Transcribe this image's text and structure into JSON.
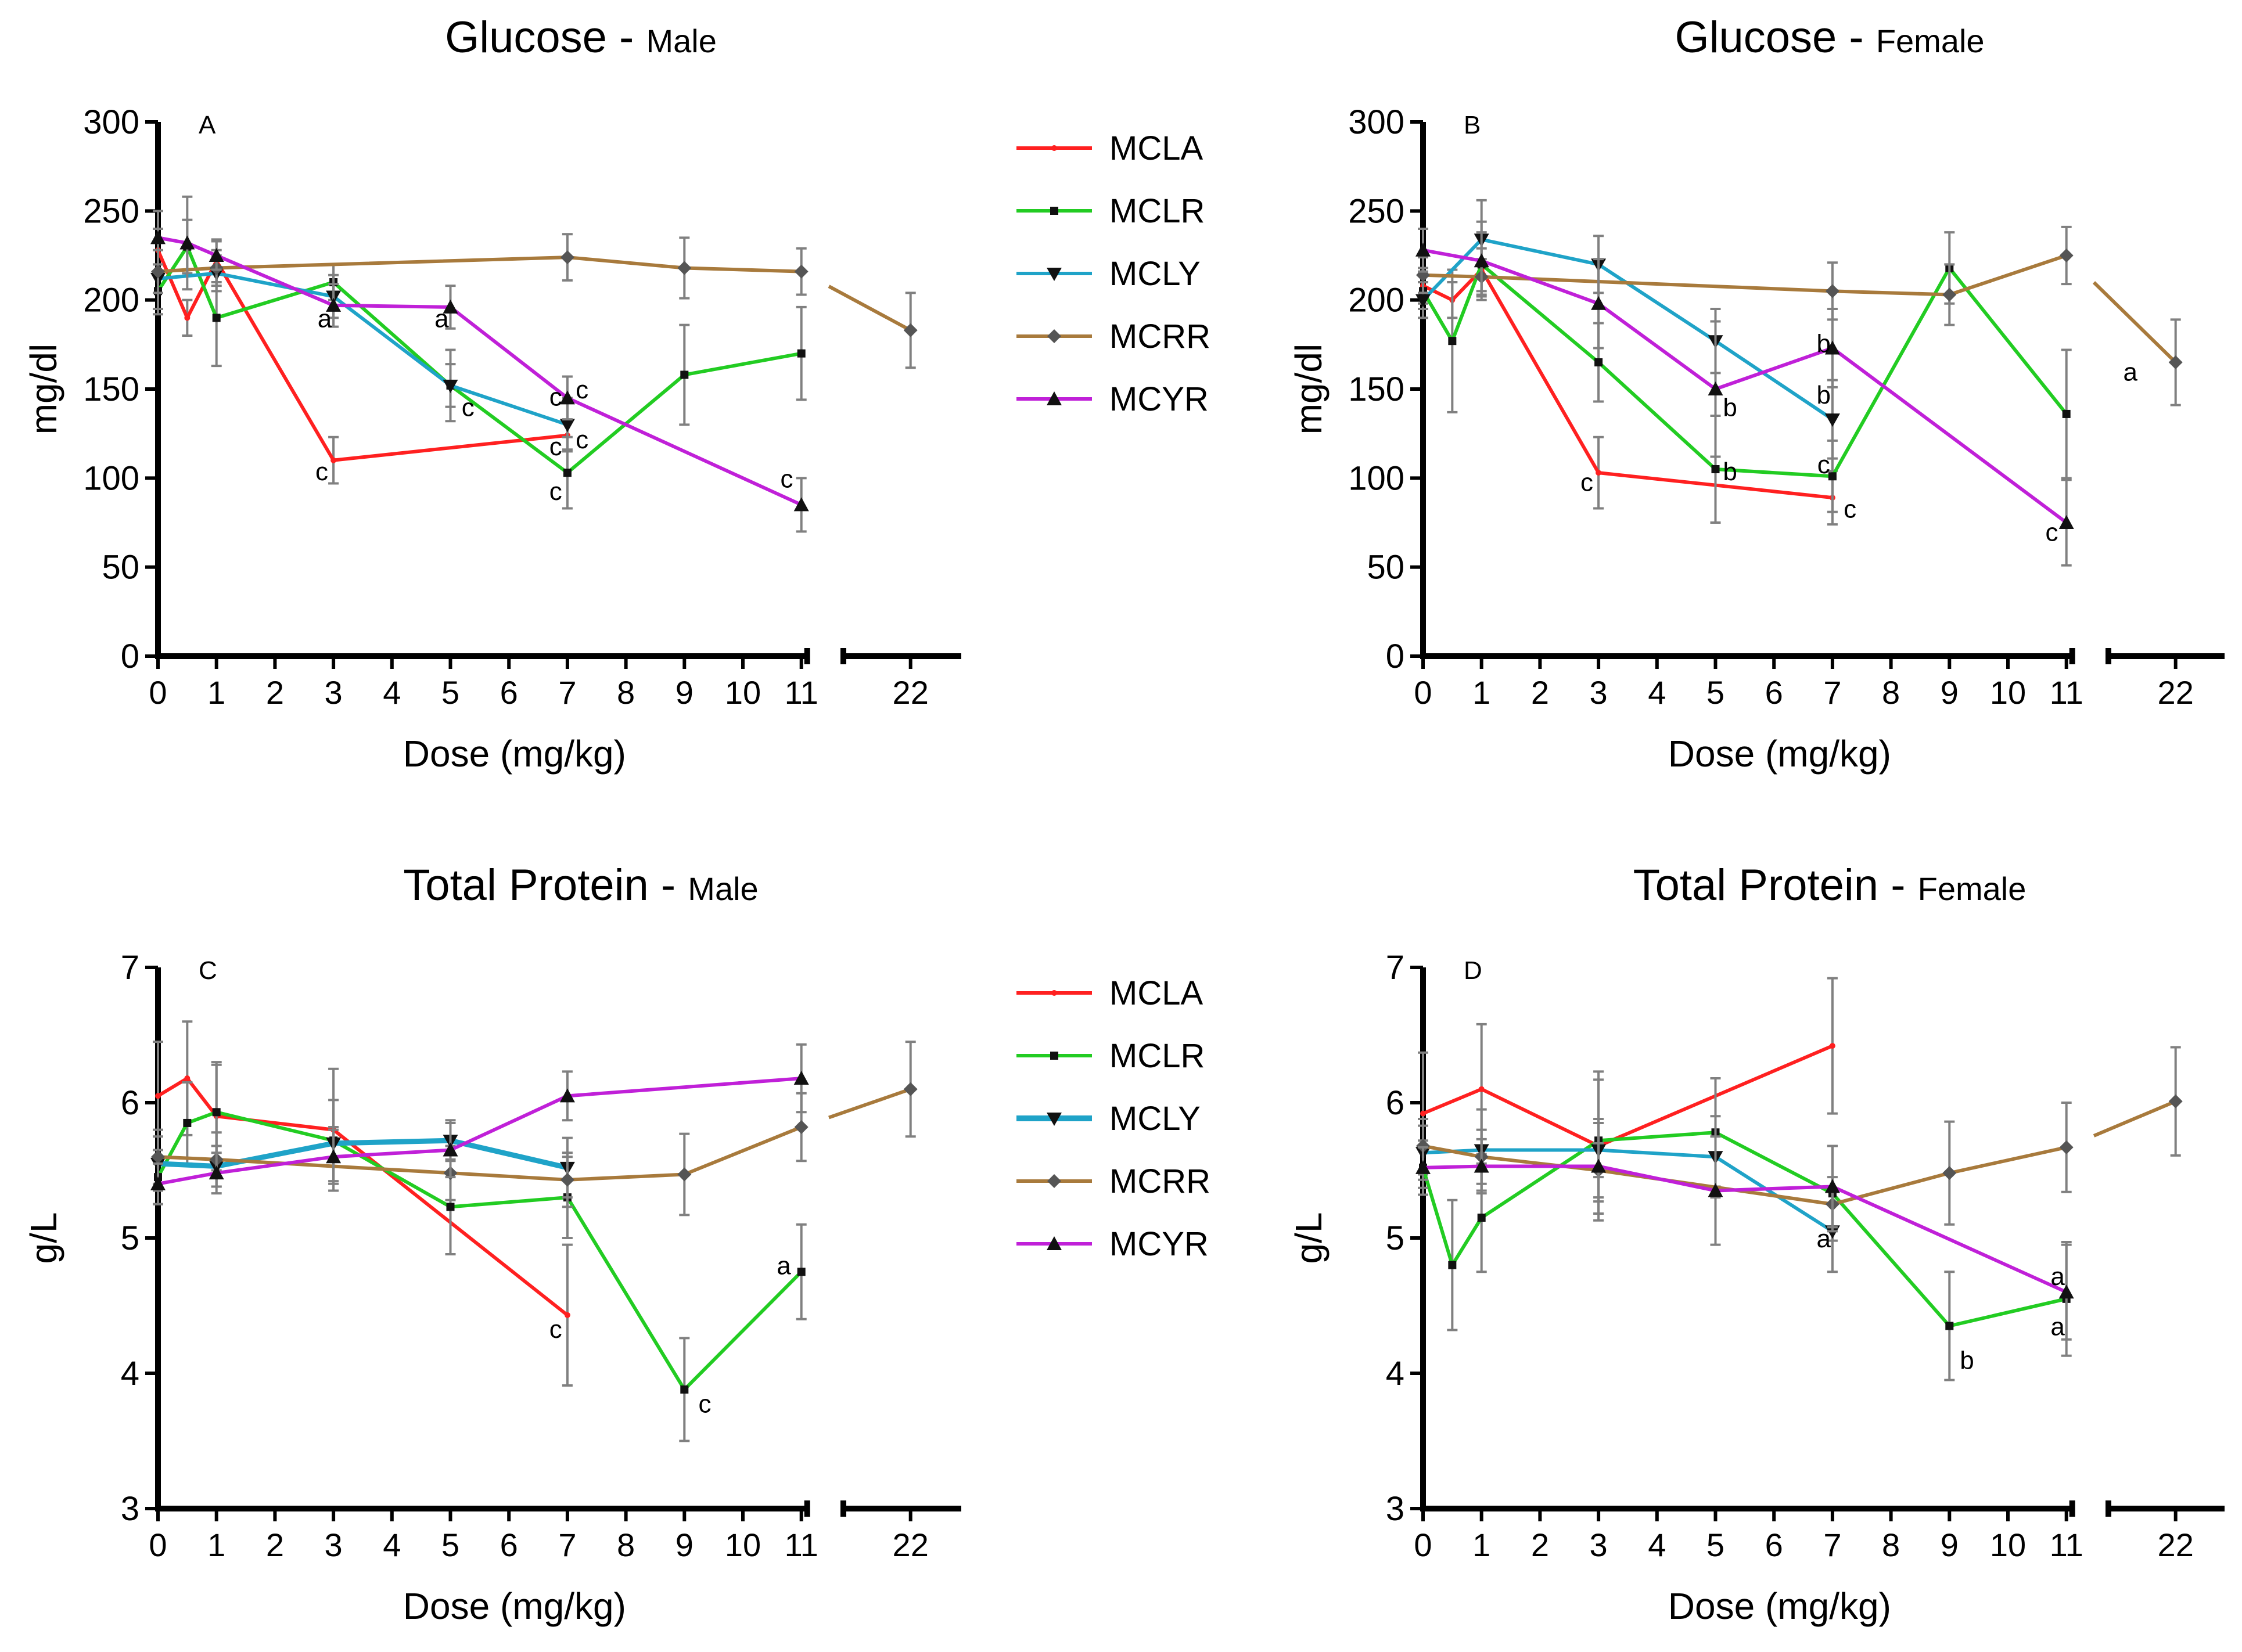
{
  "colors": {
    "MCLA": "#ff2020",
    "MCLR": "#22cc22",
    "MCLY": "#1fa3c8",
    "MCRR": "#a87a3c",
    "MCYR": "#c020d8",
    "axis": "#000000",
    "error_bar": "#808080"
  },
  "legend_series": [
    "MCLA",
    "MCLR",
    "MCLY",
    "MCRR",
    "MCYR"
  ],
  "chart_data": [
    {
      "id": "A",
      "type": "line",
      "title_main": "Glucose",
      "title_sep": "-",
      "title_sub": "Male",
      "panel_label": "A",
      "xlabel": "Dose (mg/kg)",
      "ylabel": "mg/dl",
      "ylim": [
        0,
        300
      ],
      "yticks": [
        0,
        50,
        100,
        150,
        200,
        250,
        300
      ],
      "xticks_main": [
        0,
        1,
        2,
        3,
        4,
        5,
        6,
        7,
        8,
        9,
        10,
        11
      ],
      "xticks_break": [
        22
      ],
      "series": [
        {
          "name": "MCLA",
          "points": [
            [
              0,
              228,
              12
            ],
            [
              0.5,
              190,
              10
            ],
            [
              1,
              222,
              12
            ],
            [
              3,
              110,
              13
            ],
            [
              7,
              124,
              8
            ]
          ]
        },
        {
          "name": "MCLR",
          "points": [
            [
              0,
              205,
              10
            ],
            [
              0.5,
              230,
              15
            ],
            [
              1,
              190,
              27
            ],
            [
              3,
              210,
              10
            ],
            [
              5,
              152,
              20
            ],
            [
              7,
              103,
              20
            ],
            [
              9,
              158,
              28
            ],
            [
              11,
              170,
              26
            ]
          ]
        },
        {
          "name": "MCLY",
          "points": [
            [
              0,
              212,
              20
            ],
            [
              1,
              215,
              10
            ],
            [
              3,
              202,
              12
            ],
            [
              5,
              152,
              12
            ],
            [
              7,
              130,
              15
            ]
          ]
        },
        {
          "name": "MCRR",
          "points": [
            [
              0,
              216,
              12
            ],
            [
              1,
              218,
              10
            ],
            [
              7,
              224,
              13
            ],
            [
              9,
              218,
              17
            ],
            [
              11,
              216,
              13
            ]
          ],
          "break_points": [
            [
              22,
              183,
              21
            ]
          ]
        },
        {
          "name": "MCYR",
          "points": [
            [
              0,
              235,
              15
            ],
            [
              0.5,
              232,
              26
            ],
            [
              1,
              225,
              8
            ],
            [
              3,
              197,
              12
            ],
            [
              5,
              196,
              12
            ],
            [
              7,
              145,
              12
            ],
            [
              11,
              85,
              15
            ]
          ]
        }
      ],
      "annotations": [
        {
          "text": "a",
          "x": 2.85,
          "y": 190
        },
        {
          "text": "a",
          "x": 4.85,
          "y": 190
        },
        {
          "text": "c",
          "x": 5.3,
          "y": 140
        },
        {
          "text": "c",
          "x": 2.8,
          "y": 104
        },
        {
          "text": "c",
          "x": 6.8,
          "y": 118
        },
        {
          "text": "c",
          "x": 6.8,
          "y": 93
        },
        {
          "text": "c",
          "x": 6.8,
          "y": 146
        },
        {
          "text": "c",
          "x": 7.25,
          "y": 150
        },
        {
          "text": "c",
          "x": 7.25,
          "y": 122
        },
        {
          "text": "c",
          "x": 10.75,
          "y": 100
        }
      ]
    },
    {
      "id": "B",
      "type": "line",
      "title_main": "Glucose",
      "title_sep": "-",
      "title_sub": "Female",
      "panel_label": "B",
      "xlabel": "Dose (mg/kg)",
      "ylabel": "mg/dl",
      "ylim": [
        0,
        300
      ],
      "yticks": [
        0,
        50,
        100,
        150,
        200,
        250,
        300
      ],
      "xticks_main": [
        0,
        1,
        2,
        3,
        4,
        5,
        6,
        7,
        8,
        9,
        10,
        11
      ],
      "xticks_break": [
        22
      ],
      "series": [
        {
          "name": "MCLA",
          "points": [
            [
              0,
              208,
              10
            ],
            [
              0.5,
              200,
              10
            ],
            [
              1,
              217,
              12
            ],
            [
              3,
              103,
              20
            ],
            [
              7,
              89,
              15
            ]
          ]
        },
        {
          "name": "MCLR",
          "points": [
            [
              0,
              205,
              10
            ],
            [
              0.5,
              177,
              40
            ],
            [
              1,
              220,
              18
            ],
            [
              3,
              165,
              22
            ],
            [
              5,
              105,
              30
            ],
            [
              7,
              101,
              20
            ],
            [
              9,
              218,
              20
            ],
            [
              11,
              136,
              36
            ]
          ]
        },
        {
          "name": "MCLY",
          "points": [
            [
              0,
              200,
              10
            ],
            [
              1,
              234,
              22
            ],
            [
              3,
              220,
              16
            ],
            [
              5,
              177,
              18
            ],
            [
              7,
              133,
              22
            ]
          ]
        },
        {
          "name": "MCRR",
          "points": [
            [
              0,
              214,
              10
            ],
            [
              1,
              213,
              10
            ],
            [
              7,
              205,
              16
            ],
            [
              9,
              203,
              17
            ],
            [
              11,
              225,
              16
            ]
          ],
          "break_points": [
            [
              22,
              165,
              24
            ]
          ]
        },
        {
          "name": "MCYR",
          "points": [
            [
              0,
              228,
              12
            ],
            [
              1,
              222,
              22
            ],
            [
              3,
              198,
              25
            ],
            [
              5,
              150,
              38
            ],
            [
              7,
              173,
              22
            ],
            [
              11,
              75,
              24
            ]
          ]
        }
      ],
      "annotations": [
        {
          "text": "c",
          "x": 2.8,
          "y": 98
        },
        {
          "text": "b",
          "x": 5.25,
          "y": 140
        },
        {
          "text": "b",
          "x": 5.25,
          "y": 104
        },
        {
          "text": "b",
          "x": 6.85,
          "y": 176
        },
        {
          "text": "b",
          "x": 6.85,
          "y": 147
        },
        {
          "text": "c",
          "x": 6.85,
          "y": 108
        },
        {
          "text": "c",
          "x": 7.3,
          "y": 83
        },
        {
          "text": "c",
          "x": 10.75,
          "y": 70
        },
        {
          "text": "a",
          "x": 21.6,
          "y": 160
        }
      ]
    },
    {
      "id": "C",
      "type": "line",
      "title_main": "Total Protein",
      "title_sep": "-",
      "title_sub": "Male",
      "panel_label": "C",
      "xlabel": "Dose (mg/kg)",
      "ylabel": "g/L",
      "ylim": [
        3,
        7
      ],
      "yticks": [
        3,
        4,
        5,
        6,
        7
      ],
      "xticks_main": [
        0,
        1,
        2,
        3,
        4,
        5,
        6,
        7,
        8,
        9,
        10,
        11
      ],
      "xticks_break": [
        22
      ],
      "series": [
        {
          "name": "MCLA",
          "points": [
            [
              0,
              6.05,
              0.4
            ],
            [
              0.5,
              6.18,
              0.42
            ],
            [
              1,
              5.9,
              0.4
            ],
            [
              3,
              5.8,
              0.45
            ],
            [
              7,
              4.43,
              0.52
            ]
          ]
        },
        {
          "name": "MCLR",
          "points": [
            [
              0,
              5.45,
              0.2
            ],
            [
              0.5,
              5.85,
              0.3
            ],
            [
              1,
              5.93,
              0.35
            ],
            [
              3,
              5.72,
              0.3
            ],
            [
              5,
              5.23,
              0.35
            ],
            [
              7,
              5.3,
              0.3
            ],
            [
              9,
              3.88,
              0.38
            ],
            [
              11,
              4.75,
              0.35
            ]
          ]
        },
        {
          "name": "MCLY",
          "points": [
            [
              0,
              5.55,
              0.2
            ],
            [
              1,
              5.53,
              0.15
            ],
            [
              3,
              5.7,
              0.12
            ],
            [
              5,
              5.72,
              0.15
            ],
            [
              7,
              5.52,
              0.22
            ]
          ]
        },
        {
          "name": "MCRR",
          "points": [
            [
              0,
              5.6,
              0.2
            ],
            [
              1,
              5.58,
              0.2
            ],
            [
              5,
              5.48,
              0.2
            ],
            [
              7,
              5.43,
              0.2
            ],
            [
              9,
              5.47,
              0.3
            ],
            [
              11,
              5.82,
              0.25
            ]
          ],
          "break_points": [
            [
              22,
              6.1,
              0.35
            ]
          ]
        },
        {
          "name": "MCYR",
          "points": [
            [
              0,
              5.4,
              0.15
            ],
            [
              1,
              5.48,
              0.15
            ],
            [
              3,
              5.6,
              0.2
            ],
            [
              5,
              5.65,
              0.2
            ],
            [
              7,
              6.05,
              0.18
            ],
            [
              11,
              6.18,
              0.25
            ]
          ]
        }
      ],
      "annotations": [
        {
          "text": "c",
          "x": 6.8,
          "y": 4.33
        },
        {
          "text": "c",
          "x": 9.35,
          "y": 3.78
        },
        {
          "text": "a",
          "x": 10.7,
          "y": 4.8
        }
      ]
    },
    {
      "id": "D",
      "type": "line",
      "title_main": "Total Protein",
      "title_sep": "-",
      "title_sub": "Female",
      "panel_label": "D",
      "xlabel": "Dose (mg/kg)",
      "ylabel": "g/L",
      "ylim": [
        3,
        7
      ],
      "yticks": [
        3,
        4,
        5,
        6,
        7
      ],
      "xticks_main": [
        0,
        1,
        2,
        3,
        4,
        5,
        6,
        7,
        8,
        9,
        10,
        11
      ],
      "xticks_break": [
        22
      ],
      "series": [
        {
          "name": "MCLA",
          "points": [
            [
              0,
              5.92,
              0.45
            ],
            [
              1,
              6.1,
              0.48
            ],
            [
              3,
              5.68,
              0.55
            ],
            [
              7,
              6.42,
              0.5
            ]
          ]
        },
        {
          "name": "MCLR",
          "points": [
            [
              0,
              5.52,
              0.2
            ],
            [
              0.5,
              4.8,
              0.48
            ],
            [
              1,
              5.15,
              0.4
            ],
            [
              3,
              5.72,
              0.45
            ],
            [
              5,
              5.78,
              0.4
            ],
            [
              7,
              5.33,
              0.35
            ],
            [
              9,
              4.35,
              0.4
            ],
            [
              11,
              4.55,
              0.42
            ]
          ]
        },
        {
          "name": "MCLY",
          "points": [
            [
              0,
              5.63,
              0.2
            ],
            [
              1,
              5.65,
              0.3
            ],
            [
              3,
              5.65,
              0.2
            ],
            [
              5,
              5.6,
              0.3
            ],
            [
              7,
              5.05,
              0.3
            ]
          ]
        },
        {
          "name": "MCRR",
          "points": [
            [
              0,
              5.68,
              0.2
            ],
            [
              1,
              5.6,
              0.2
            ],
            [
              3,
              5.5,
              0.2
            ],
            [
              7,
              5.25,
              0.2
            ],
            [
              9,
              5.48,
              0.38
            ],
            [
              11,
              5.67,
              0.33
            ]
          ],
          "break_points": [
            [
              22,
              6.01,
              0.4
            ]
          ]
        },
        {
          "name": "MCYR",
          "points": [
            [
              0,
              5.52,
              0.15
            ],
            [
              1,
              5.53,
              0.2
            ],
            [
              3,
              5.53,
              0.35
            ],
            [
              5,
              5.35,
              0.4
            ],
            [
              7,
              5.38,
              0.3
            ],
            [
              11,
              4.6,
              0.35
            ]
          ]
        }
      ],
      "annotations": [
        {
          "text": "a",
          "x": 6.85,
          "y": 5.0
        },
        {
          "text": "b",
          "x": 9.3,
          "y": 4.1
        },
        {
          "text": "a",
          "x": 10.85,
          "y": 4.72
        },
        {
          "text": "a",
          "x": 10.85,
          "y": 4.35
        }
      ]
    }
  ]
}
